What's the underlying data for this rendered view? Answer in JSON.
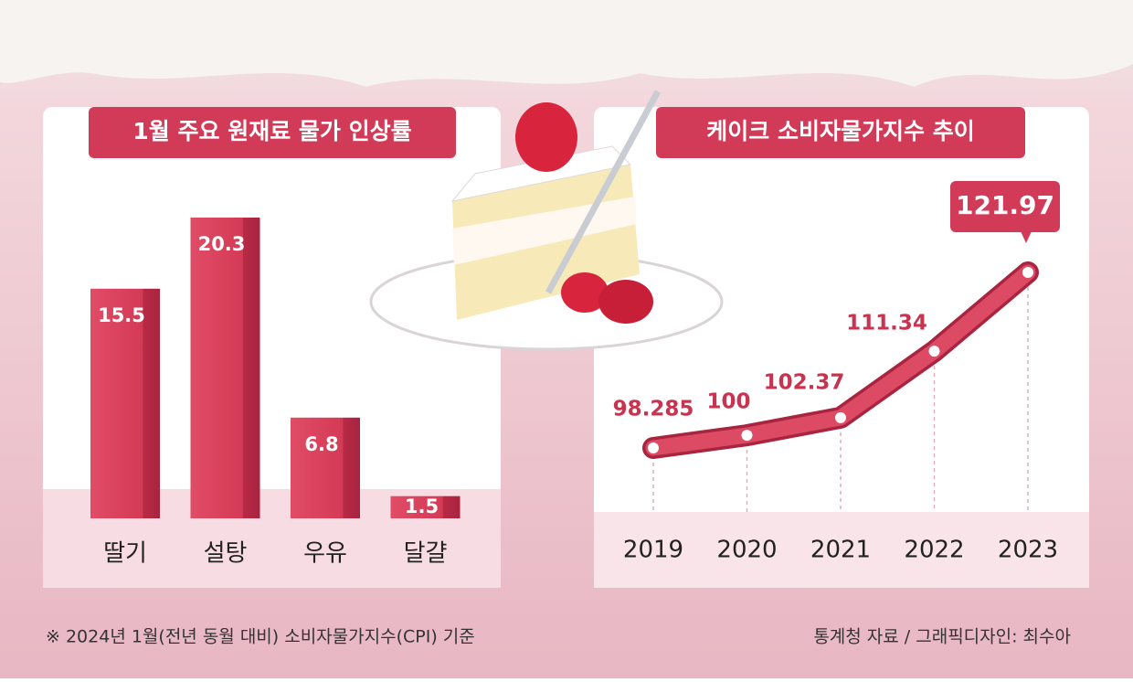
{
  "chart_data": [
    {
      "type": "bar",
      "title": "1월 주요 원재료 물가 인상률",
      "categories": [
        "딸기",
        "설탕",
        "우유",
        "달걀"
      ],
      "values": [
        15.5,
        20.3,
        6.8,
        1.5
      ],
      "color": "#d8405a"
    },
    {
      "type": "line",
      "title": "케이크 소비자물가지수 추이",
      "categories": [
        "2019",
        "2020",
        "2021",
        "2022",
        "2023"
      ],
      "values": [
        98.285,
        100,
        102.37,
        111.34,
        121.97
      ],
      "color": "#dc4a64"
    }
  ],
  "footnote": "※ 2024년 1월(전년 동월 대비) 소비자물가지수(CPI) 기준",
  "source": "통계청 자료 / 그래픽디자인: 최수아"
}
